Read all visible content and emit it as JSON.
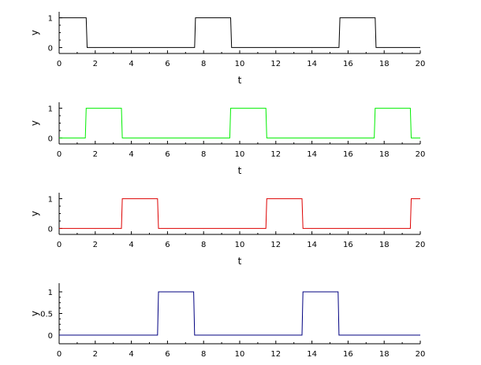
{
  "chart_data": [
    {
      "type": "line",
      "xlabel": "t",
      "ylabel": "y",
      "xlim": [
        0,
        20
      ],
      "ylim": [
        -0.2,
        1.2
      ],
      "xticks": [
        0,
        2,
        4,
        6,
        8,
        10,
        12,
        14,
        16,
        18,
        20
      ],
      "yticks": [
        0,
        1
      ],
      "grid": false,
      "color": "#000000",
      "series": [
        {
          "x": [
            0,
            1.5,
            1.55,
            7.5,
            7.55,
            9.5,
            9.55,
            15.5,
            15.55,
            17.5,
            17.55,
            20
          ],
          "y": [
            1,
            1,
            0,
            0,
            1,
            1,
            0,
            0,
            1,
            1,
            0,
            0
          ]
        }
      ]
    },
    {
      "type": "line",
      "xlabel": "t",
      "ylabel": "y",
      "xlim": [
        0,
        20
      ],
      "ylim": [
        -0.2,
        1.2
      ],
      "xticks": [
        0,
        2,
        4,
        6,
        8,
        10,
        12,
        14,
        16,
        18,
        20
      ],
      "yticks": [
        0,
        1
      ],
      "grid": false,
      "color": "#00ee00",
      "series": [
        {
          "x": [
            0,
            1.45,
            1.5,
            3.45,
            3.5,
            9.45,
            9.5,
            11.45,
            11.5,
            17.45,
            17.5,
            19.45,
            19.5,
            20
          ],
          "y": [
            0,
            0,
            1,
            1,
            0,
            0,
            1,
            1,
            0,
            0,
            1,
            1,
            0,
            0
          ]
        }
      ]
    },
    {
      "type": "line",
      "xlabel": "t",
      "ylabel": "y",
      "xlim": [
        0,
        20
      ],
      "ylim": [
        -0.2,
        1.2
      ],
      "xticks": [
        0,
        2,
        4,
        6,
        8,
        10,
        12,
        14,
        16,
        18,
        20
      ],
      "yticks": [
        0,
        1
      ],
      "grid": false,
      "color": "#dd0000",
      "series": [
        {
          "x": [
            0,
            3.45,
            3.5,
            5.45,
            5.5,
            11.45,
            11.5,
            13.45,
            13.5,
            19.45,
            19.5,
            20
          ],
          "y": [
            0,
            0,
            1,
            1,
            0,
            0,
            1,
            1,
            0,
            0,
            1,
            1
          ]
        }
      ]
    },
    {
      "type": "line",
      "xlabel": "",
      "ylabel": "y",
      "xlim": [
        0,
        20
      ],
      "ylim": [
        -0.2,
        1.2
      ],
      "xticks": [
        0,
        2,
        4,
        6,
        8,
        10,
        12,
        14,
        16,
        18,
        20
      ],
      "yticks": [
        0,
        0.5,
        1
      ],
      "grid": false,
      "color": "#000080",
      "series": [
        {
          "x": [
            0,
            5.45,
            5.5,
            7.45,
            7.5,
            13.45,
            13.5,
            15.45,
            15.5,
            20
          ],
          "y": [
            0,
            0,
            1,
            1,
            0,
            0,
            1,
            1,
            0,
            0
          ]
        }
      ]
    }
  ]
}
